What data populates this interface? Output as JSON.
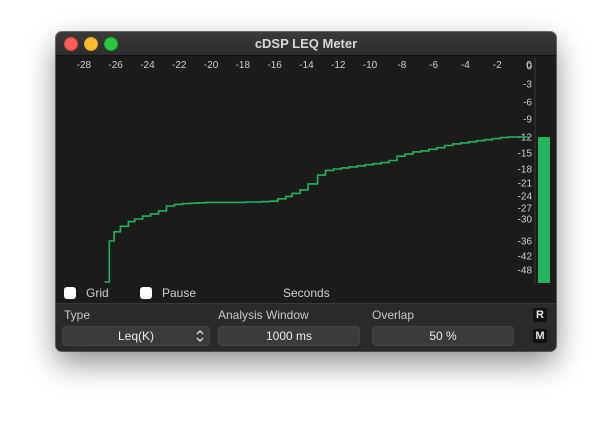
{
  "window": {
    "title": "cDSP LEQ Meter"
  },
  "chart_data": {
    "type": "line",
    "x_ticks": [
      "-28",
      "-26",
      "-24",
      "-22",
      "-20",
      "-18",
      "-16",
      "-14",
      "-12",
      "-10",
      "-8",
      "-6",
      "-4",
      "-2",
      "0"
    ],
    "y_ticks": [
      "0",
      "-3",
      "-6",
      "-9",
      "-12",
      "-15",
      "-18",
      "-21",
      "-24",
      "-27",
      "-30",
      "-36",
      "-42",
      "-48"
    ],
    "xlabel": "Seconds",
    "xlim": [
      -29.5,
      0
    ],
    "series_color": "#22b35c",
    "meter_value": -12,
    "series": [
      {
        "step": true,
        "x": [
          -26.7,
          -26.4,
          -26.1,
          -25.7,
          -25.2,
          -24.8,
          -24.3,
          -23.8,
          -23.3,
          -22.8,
          -22.3,
          -21.8,
          -21.3,
          -20.8,
          -20.3,
          -19.8,
          -19.3,
          -18.8,
          -18.3,
          -17.8,
          -17.3,
          -16.8,
          -16.3,
          -15.8,
          -15.3,
          -14.9,
          -14.4,
          -13.9,
          -13.3,
          -12.8,
          -12.3,
          -11.8,
          -11.3,
          -10.8,
          -10.3,
          -9.8,
          -9.3,
          -8.8,
          -8.3,
          -7.8,
          -7.3,
          -6.8,
          -6.3,
          -5.8,
          -5.3,
          -4.8,
          -4.3,
          -3.8,
          -3.3,
          -2.8,
          -2.3,
          -1.8,
          -1.3,
          -0.8,
          -0.3,
          0
        ],
        "y": [
          -52,
          -36,
          -33.5,
          -32,
          -30.7,
          -30,
          -29.2,
          -28.6,
          -27.8,
          -26.5,
          -26.1,
          -25.9,
          -25.8,
          -25.7,
          -25.6,
          -25.6,
          -25.6,
          -25.6,
          -25.6,
          -25.5,
          -25.5,
          -25.4,
          -25.3,
          -24.7,
          -24.1,
          -23.4,
          -22.6,
          -21.2,
          -19.3,
          -18.3,
          -18.0,
          -17.8,
          -17.6,
          -17.4,
          -17.2,
          -17.0,
          -16.8,
          -16.4,
          -15.6,
          -15.2,
          -14.8,
          -14.6,
          -14.3,
          -14.0,
          -13.6,
          -13.3,
          -13.1,
          -12.9,
          -12.7,
          -12.5,
          -12.3,
          -12.1,
          -12.0,
          -12.0,
          -12.0,
          -12.0
        ]
      }
    ]
  },
  "controls": {
    "grid_label": "Grid",
    "grid_checked": false,
    "pause_label": "Pause",
    "pause_checked": false,
    "seconds_label": "Seconds"
  },
  "settings": {
    "type_label": "Type",
    "type_value": "Leq(K)",
    "window_label": "Analysis Window",
    "window_value": "1000 ms",
    "overlap_label": "Overlap",
    "overlap_value": "50 %"
  },
  "buttons": {
    "reset_label": "R",
    "mode_label": "M"
  }
}
